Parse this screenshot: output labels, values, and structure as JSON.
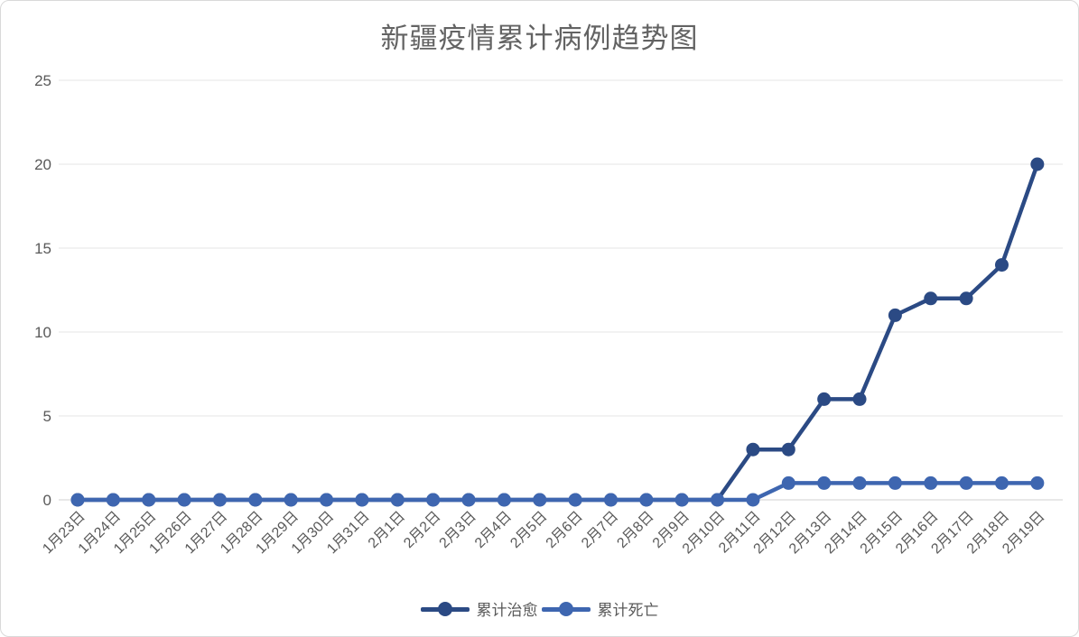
{
  "chart_data": {
    "type": "line",
    "title": "新疆疫情累计病例趋势图",
    "xlabel": "",
    "ylabel": "",
    "ylim": [
      0,
      25
    ],
    "yticks": [
      0,
      5,
      10,
      15,
      20,
      25
    ],
    "grid": true,
    "legend_position": "bottom",
    "categories": [
      "1月23日",
      "1月24日",
      "1月25日",
      "1月26日",
      "1月27日",
      "1月28日",
      "1月29日",
      "1月30日",
      "1月31日",
      "2月1日",
      "2月2日",
      "2月3日",
      "2月4日",
      "2月5日",
      "2月6日",
      "2月7日",
      "2月8日",
      "2月9日",
      "2月10日",
      "2月11日",
      "2月12日",
      "2月13日",
      "2月14日",
      "2月15日",
      "2月16日",
      "2月17日",
      "2月18日",
      "2月19日"
    ],
    "series": [
      {
        "name": "累计治愈",
        "color": "#2b4a84",
        "values": [
          0,
          0,
          0,
          0,
          0,
          0,
          0,
          0,
          0,
          0,
          0,
          0,
          0,
          0,
          0,
          0,
          0,
          0,
          0,
          3,
          3,
          6,
          6,
          11,
          12,
          12,
          14,
          20
        ]
      },
      {
        "name": "累计死亡",
        "color": "#3e66b0",
        "values": [
          0,
          0,
          0,
          0,
          0,
          0,
          0,
          0,
          0,
          0,
          0,
          0,
          0,
          0,
          0,
          0,
          0,
          0,
          0,
          0,
          1,
          1,
          1,
          1,
          1,
          1,
          1,
          1
        ]
      }
    ],
    "colors": {
      "title_text": "#636363",
      "axis_text": "#595959",
      "gridline": "#ededed",
      "axis_line": "#d9d9d9",
      "background": "#ffffff",
      "frame_border": "#d9d9d9"
    }
  }
}
